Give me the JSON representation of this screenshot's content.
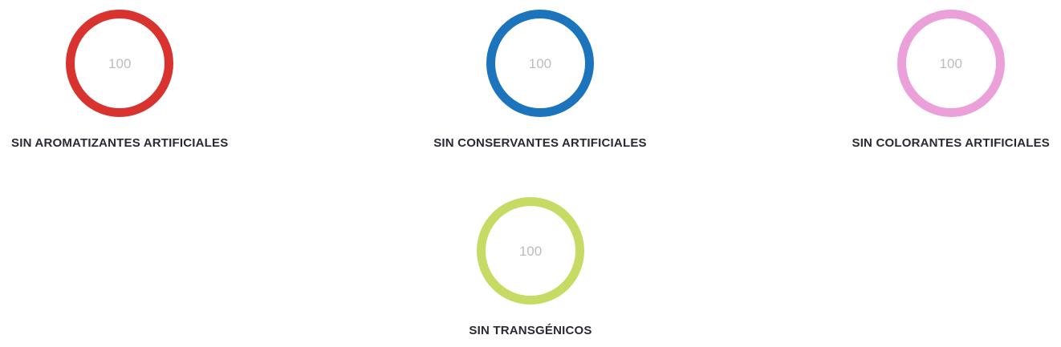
{
  "page": {
    "background_color": "#ffffff",
    "value_text_color": "#bdbdbd",
    "label_text_color": "#2b2a33"
  },
  "charts": [
    {
      "label": "SIN AROMATIZANTES ARTIFICIALES",
      "value": "100",
      "color": "#d8332f"
    },
    {
      "label": "SIN CONSERVANTES ARTIFICIALES",
      "value": "100",
      "color": "#1c75bc"
    },
    {
      "label": "SIN COLORANTES ARTIFICIALES",
      "value": "100",
      "color": "#eba0da"
    },
    {
      "label": "SIN TRANSGÉNICOS",
      "value": "100",
      "color": "#c5db64"
    }
  ],
  "chart_data": [
    {
      "type": "pie",
      "subtype": "donut-ring-progress",
      "title": "SIN AROMATIZANTES ARTIFICIALES",
      "categories": [
        "value"
      ],
      "values": [
        100
      ],
      "value_range": [
        0,
        100
      ],
      "center_label": "100",
      "ring_color": "#d8332f",
      "legend": false
    },
    {
      "type": "pie",
      "subtype": "donut-ring-progress",
      "title": "SIN CONSERVANTES ARTIFICIALES",
      "categories": [
        "value"
      ],
      "values": [
        100
      ],
      "value_range": [
        0,
        100
      ],
      "center_label": "100",
      "ring_color": "#1c75bc",
      "legend": false
    },
    {
      "type": "pie",
      "subtype": "donut-ring-progress",
      "title": "SIN COLORANTES ARTIFICIALES",
      "categories": [
        "value"
      ],
      "values": [
        100
      ],
      "value_range": [
        0,
        100
      ],
      "center_label": "100",
      "ring_color": "#eba0da",
      "legend": false
    },
    {
      "type": "pie",
      "subtype": "donut-ring-progress",
      "title": "SIN TRANSGÉNICOS",
      "categories": [
        "value"
      ],
      "values": [
        100
      ],
      "value_range": [
        0,
        100
      ],
      "center_label": "100",
      "ring_color": "#c5db64",
      "legend": false
    }
  ]
}
